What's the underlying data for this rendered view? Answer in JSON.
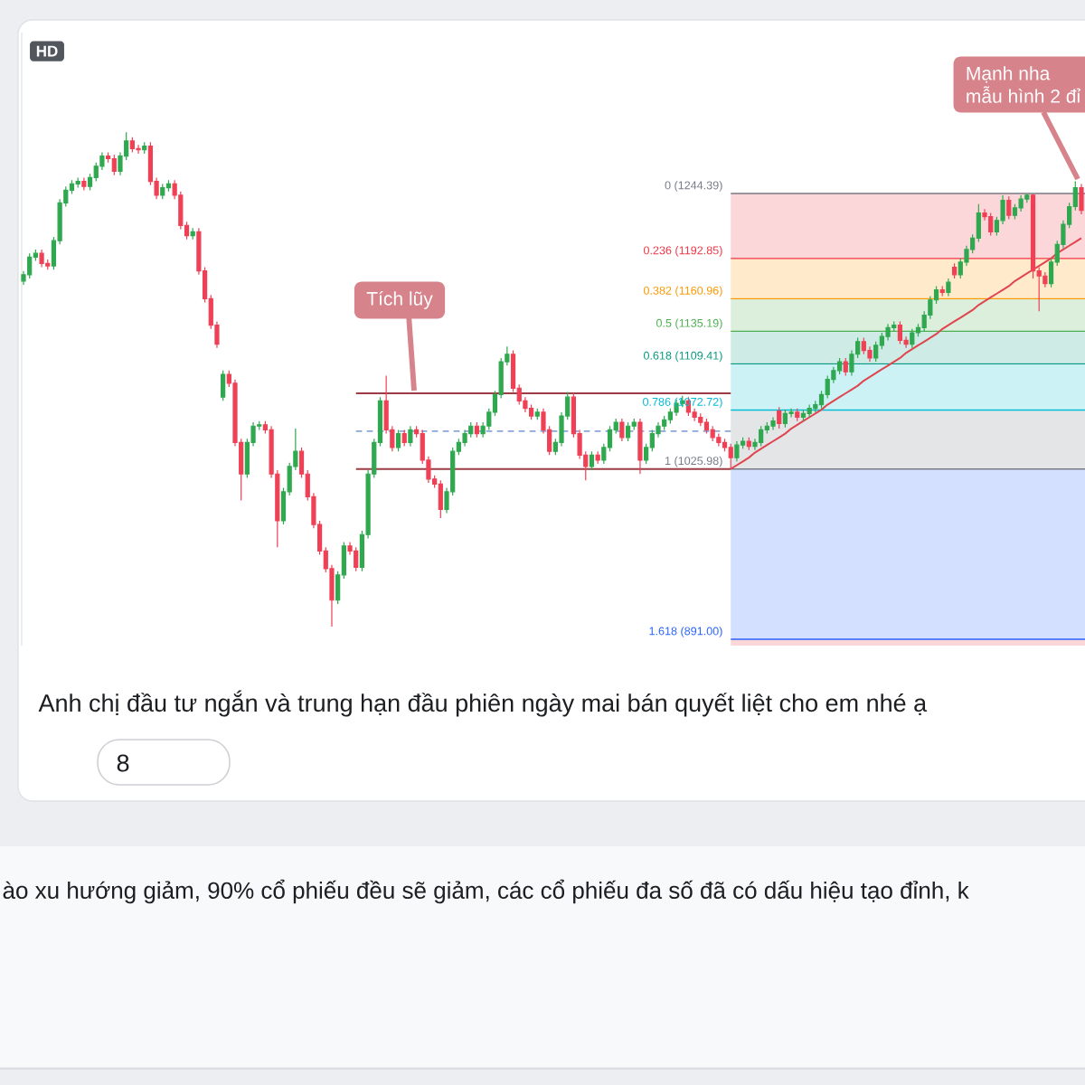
{
  "chart_data": {
    "type": "candlestick",
    "tick_labels": false,
    "categories": [
      null,
      null,
      null,
      null,
      null,
      null,
      null,
      null,
      null,
      null,
      null,
      null,
      null,
      null,
      null,
      null,
      null,
      null,
      null,
      null,
      null,
      null,
      null,
      null,
      null,
      null,
      null,
      null,
      null,
      null,
      null,
      null,
      null,
      null,
      null,
      null,
      null,
      null,
      null,
      null,
      null,
      null,
      null,
      null,
      null,
      null,
      null,
      null,
      null,
      null,
      null,
      null,
      null,
      null,
      null,
      null,
      null,
      null,
      null,
      null,
      null,
      null,
      null,
      null,
      null,
      null,
      null,
      null,
      null,
      null,
      null,
      null,
      null,
      null,
      null,
      null,
      null,
      null,
      null,
      null,
      null,
      null,
      null,
      null,
      null,
      null,
      null,
      null,
      null,
      null,
      null,
      null,
      null,
      null,
      null,
      null,
      null,
      null,
      null,
      null,
      null,
      null,
      null,
      null,
      null,
      null,
      null,
      null,
      null,
      null,
      null,
      null,
      null,
      null,
      null,
      null,
      null,
      null,
      null,
      null,
      null,
      null,
      null,
      null,
      null,
      null,
      null,
      null,
      null,
      null,
      null,
      null,
      null,
      null,
      null,
      null,
      null,
      null,
      null,
      null,
      null,
      null,
      null,
      null,
      null,
      null,
      null,
      null,
      null,
      null,
      null,
      null,
      null,
      null,
      null,
      null,
      null,
      null,
      null,
      null,
      null,
      null,
      null,
      null,
      null,
      null,
      null,
      null,
      null,
      null,
      null,
      null,
      null,
      null,
      null,
      null
    ],
    "ohlc": [
      [
        1175,
        1183,
        1172,
        1180
      ],
      [
        1180,
        1197,
        1177,
        1194
      ],
      [
        1194,
        1200,
        1191,
        1197
      ],
      [
        1197,
        1200,
        1186,
        1189
      ],
      [
        1189,
        1192,
        1184,
        1187
      ],
      [
        1187,
        1210,
        1184,
        1207
      ],
      [
        1207,
        1240,
        1204,
        1237
      ],
      [
        1237,
        1250,
        1234,
        1247
      ],
      [
        1247,
        1255,
        1244,
        1252
      ],
      [
        1252,
        1257,
        1249,
        1254
      ],
      [
        1254,
        1257,
        1247,
        1250
      ],
      [
        1250,
        1260,
        1247,
        1257
      ],
      [
        1257,
        1269,
        1254,
        1266
      ],
      [
        1266,
        1277,
        1263,
        1274
      ],
      [
        1274,
        1277,
        1269,
        1272
      ],
      [
        1272,
        1275,
        1259,
        1262
      ],
      [
        1262,
        1277,
        1259,
        1274
      ],
      [
        1274,
        1293,
        1271,
        1286
      ],
      [
        1286,
        1289,
        1277,
        1280
      ],
      [
        1280,
        1283,
        1276,
        1279
      ],
      [
        1279,
        1285,
        1276,
        1282
      ],
      [
        1282,
        1285,
        1251,
        1254
      ],
      [
        1254,
        1257,
        1240,
        1243
      ],
      [
        1243,
        1252,
        1240,
        1249
      ],
      [
        1249,
        1255,
        1246,
        1252
      ],
      [
        1252,
        1255,
        1240,
        1243
      ],
      [
        1243,
        1246,
        1216,
        1219
      ],
      [
        1219,
        1222,
        1208,
        1211
      ],
      [
        1211,
        1217,
        1208,
        1214
      ],
      [
        1214,
        1217,
        1180,
        1183
      ],
      [
        1183,
        1186,
        1158,
        1161
      ],
      [
        1161,
        1164,
        1137,
        1140
      ],
      [
        1140,
        1143,
        1122,
        1125
      ],
      [
        1083,
        1104,
        1080,
        1101
      ],
      [
        1101,
        1104,
        1091,
        1094
      ],
      [
        1094,
        1097,
        1044,
        1047
      ],
      [
        1047,
        1050,
        1001,
        1022
      ],
      [
        1022,
        1050,
        1019,
        1047
      ],
      [
        1047,
        1063,
        1044,
        1060
      ],
      [
        1060,
        1064,
        1057,
        1061
      ],
      [
        1061,
        1064,
        1054,
        1057
      ],
      [
        1057,
        1060,
        1019,
        1022
      ],
      [
        1022,
        1025,
        964,
        985
      ],
      [
        985,
        1011,
        982,
        1008
      ],
      [
        1008,
        1031,
        1005,
        1028
      ],
      [
        1028,
        1058,
        1025,
        1040
      ],
      [
        1040,
        1043,
        1019,
        1022
      ],
      [
        1022,
        1025,
        1001,
        1004
      ],
      [
        1004,
        1007,
        979,
        982
      ],
      [
        982,
        985,
        958,
        961
      ],
      [
        961,
        964,
        944,
        947
      ],
      [
        947,
        950,
        901,
        922
      ],
      [
        922,
        945,
        919,
        942
      ],
      [
        942,
        968,
        939,
        965
      ],
      [
        965,
        968,
        958,
        961
      ],
      [
        961,
        964,
        945,
        948
      ],
      [
        948,
        977,
        945,
        974
      ],
      [
        974,
        1025,
        971,
        1022
      ],
      [
        1022,
        1050,
        1019,
        1047
      ],
      [
        1047,
        1083,
        1044,
        1080
      ],
      [
        1080,
        1100,
        1054,
        1057
      ],
      [
        1057,
        1060,
        1040,
        1043
      ],
      [
        1043,
        1057,
        1040,
        1054
      ],
      [
        1054,
        1057,
        1044,
        1047
      ],
      [
        1047,
        1060,
        1044,
        1057
      ],
      [
        1057,
        1060,
        1051,
        1054
      ],
      [
        1054,
        1057,
        1030,
        1033
      ],
      [
        1033,
        1036,
        1015,
        1018
      ],
      [
        1018,
        1021,
        1011,
        1014
      ],
      [
        1014,
        1017,
        987,
        994
      ],
      [
        994,
        1011,
        991,
        1008
      ],
      [
        1008,
        1043,
        1005,
        1040
      ],
      [
        1040,
        1050,
        1037,
        1047
      ],
      [
        1047,
        1057,
        1044,
        1054
      ],
      [
        1054,
        1063,
        1051,
        1060
      ],
      [
        1060,
        1063,
        1051,
        1054
      ],
      [
        1054,
        1063,
        1051,
        1060
      ],
      [
        1060,
        1074,
        1057,
        1071
      ],
      [
        1071,
        1088,
        1068,
        1085
      ],
      [
        1085,
        1114,
        1082,
        1111
      ],
      [
        1111,
        1123,
        1108,
        1117
      ],
      [
        1117,
        1120,
        1087,
        1090
      ],
      [
        1090,
        1093,
        1077,
        1080
      ],
      [
        1080,
        1083,
        1071,
        1074
      ],
      [
        1074,
        1077,
        1065,
        1068
      ],
      [
        1068,
        1074,
        1065,
        1071
      ],
      [
        1071,
        1074,
        1054,
        1057
      ],
      [
        1057,
        1060,
        1037,
        1040
      ],
      [
        1040,
        1050,
        1037,
        1047
      ],
      [
        1047,
        1071,
        1044,
        1068
      ],
      [
        1068,
        1087,
        1065,
        1083
      ],
      [
        1083,
        1086,
        1051,
        1054
      ],
      [
        1054,
        1057,
        1034,
        1037
      ],
      [
        1037,
        1040,
        1017,
        1028
      ],
      [
        1028,
        1040,
        1025,
        1037
      ],
      [
        1037,
        1040,
        1030,
        1033
      ],
      [
        1033,
        1046,
        1030,
        1043
      ],
      [
        1043,
        1060,
        1040,
        1057
      ],
      [
        1057,
        1066,
        1054,
        1063
      ],
      [
        1063,
        1066,
        1048,
        1051
      ],
      [
        1051,
        1063,
        1048,
        1060
      ],
      [
        1060,
        1066,
        1057,
        1063
      ],
      [
        1063,
        1066,
        1022,
        1033
      ],
      [
        1033,
        1046,
        1030,
        1043
      ],
      [
        1043,
        1057,
        1040,
        1054
      ],
      [
        1054,
        1063,
        1051,
        1060
      ],
      [
        1060,
        1068,
        1057,
        1065
      ],
      [
        1065,
        1074,
        1062,
        1071
      ],
      [
        1071,
        1081,
        1068,
        1078
      ],
      [
        1078,
        1084,
        1075,
        1080
      ],
      [
        1080,
        1083,
        1068,
        1071
      ],
      [
        1071,
        1074,
        1064,
        1067
      ],
      [
        1067,
        1070,
        1060,
        1063
      ],
      [
        1063,
        1066,
        1054,
        1057
      ],
      [
        1057,
        1060,
        1048,
        1051
      ],
      [
        1051,
        1054,
        1044,
        1047
      ],
      [
        1047,
        1050,
        1040,
        1043
      ],
      [
        1043,
        1046,
        1026,
        1035
      ],
      [
        1035,
        1048,
        1032,
        1045
      ],
      [
        1045,
        1051,
        1042,
        1048
      ],
      [
        1048,
        1051,
        1041,
        1044
      ],
      [
        1044,
        1050,
        1041,
        1047
      ],
      [
        1047,
        1060,
        1044,
        1057
      ],
      [
        1057,
        1063,
        1054,
        1060
      ],
      [
        1060,
        1067,
        1057,
        1064
      ],
      [
        1072,
        1075,
        1058,
        1062
      ],
      [
        1062,
        1073,
        1059,
        1070
      ],
      [
        1070,
        1074,
        1067,
        1071
      ],
      [
        1071,
        1074,
        1064,
        1067
      ],
      [
        1067,
        1073,
        1064,
        1070
      ],
      [
        1070,
        1077,
        1067,
        1074
      ],
      [
        1074,
        1080,
        1071,
        1077
      ],
      [
        1077,
        1088,
        1074,
        1085
      ],
      [
        1085,
        1100,
        1082,
        1097
      ],
      [
        1097,
        1107,
        1094,
        1104
      ],
      [
        1104,
        1114,
        1101,
        1111
      ],
      [
        1111,
        1114,
        1100,
        1103
      ],
      [
        1103,
        1120,
        1100,
        1117
      ],
      [
        1117,
        1130,
        1114,
        1127
      ],
      [
        1127,
        1130,
        1117,
        1120
      ],
      [
        1120,
        1123,
        1111,
        1114
      ],
      [
        1114,
        1127,
        1111,
        1124
      ],
      [
        1124,
        1134,
        1121,
        1131
      ],
      [
        1131,
        1141,
        1128,
        1138
      ],
      [
        1138,
        1143,
        1135,
        1140
      ],
      [
        1140,
        1143,
        1125,
        1128
      ],
      [
        1128,
        1131,
        1122,
        1125
      ],
      [
        1125,
        1137,
        1122,
        1134
      ],
      [
        1134,
        1141,
        1131,
        1138
      ],
      [
        1138,
        1151,
        1135,
        1148
      ],
      [
        1148,
        1163,
        1145,
        1160
      ],
      [
        1160,
        1171,
        1157,
        1168
      ],
      [
        1168,
        1171,
        1163,
        1166
      ],
      [
        1166,
        1177,
        1163,
        1174
      ],
      [
        1186,
        1189,
        1177,
        1180
      ],
      [
        1180,
        1193,
        1177,
        1190
      ],
      [
        1190,
        1203,
        1187,
        1200
      ],
      [
        1200,
        1212,
        1197,
        1209
      ],
      [
        1209,
        1236,
        1206,
        1229
      ],
      [
        1229,
        1232,
        1223,
        1226
      ],
      [
        1226,
        1229,
        1211,
        1214
      ],
      [
        1214,
        1226,
        1211,
        1223
      ],
      [
        1223,
        1243,
        1220,
        1239
      ],
      [
        1239,
        1242,
        1224,
        1227
      ],
      [
        1227,
        1236,
        1224,
        1233
      ],
      [
        1233,
        1243,
        1230,
        1240
      ],
      [
        1240,
        1244,
        1237,
        1243
      ],
      [
        1243,
        1244,
        1177,
        1183
      ],
      [
        1183,
        1186,
        1151,
        1179
      ],
      [
        1179,
        1182,
        1170,
        1173
      ],
      [
        1173,
        1193,
        1170,
        1190
      ],
      [
        1190,
        1207,
        1187,
        1204
      ],
      [
        1204,
        1223,
        1201,
        1220
      ],
      [
        1220,
        1237,
        1217,
        1234
      ],
      [
        1234,
        1254,
        1231,
        1249
      ],
      [
        1249,
        1252,
        1228,
        1231
      ]
    ],
    "colors": [
      "#2fa84f",
      "#2fa84f",
      "#2fa84f",
      "#ef4056",
      "#ef4056",
      "#2fa84f",
      "#2fa84f",
      "#2fa84f",
      "#2fa84f",
      "#2fa84f",
      "#ef4056",
      "#2fa84f",
      "#2fa84f",
      "#2fa84f",
      "#ef4056",
      "#ef4056",
      "#2fa84f",
      "#2fa84f",
      "#ef4056",
      "#ef4056",
      "#2fa84f",
      "#ef4056",
      "#ef4056",
      "#2fa84f",
      "#2fa84f",
      "#ef4056",
      "#ef4056",
      "#ef4056",
      "#2fa84f",
      "#ef4056",
      "#ef4056",
      "#ef4056",
      "#ef4056",
      "#2fa84f",
      "#ef4056",
      "#ef4056",
      "#ef4056",
      "#2fa84f",
      "#2fa84f",
      "#2fa84f",
      "#ef4056",
      "#ef4056",
      "#ef4056",
      "#2fa84f",
      "#2fa84f",
      "#2fa84f",
      "#ef4056",
      "#ef4056",
      "#ef4056",
      "#ef4056",
      "#ef4056",
      "#ef4056",
      "#2fa84f",
      "#2fa84f",
      "#ef4056",
      "#ef4056",
      "#2fa84f",
      "#2fa84f",
      "#2fa84f",
      "#2fa84f",
      "#ef4056",
      "#ef4056",
      "#2fa84f",
      "#ef4056",
      "#2fa84f",
      "#ef4056",
      "#ef4056",
      "#ef4056",
      "#ef4056",
      "#ef4056",
      "#2fa84f",
      "#2fa84f",
      "#2fa84f",
      "#2fa84f",
      "#2fa84f",
      "#ef4056",
      "#2fa84f",
      "#2fa84f",
      "#2fa84f",
      "#2fa84f",
      "#2fa84f",
      "#ef4056",
      "#ef4056",
      "#ef4056",
      "#ef4056",
      "#2fa84f",
      "#ef4056",
      "#ef4056",
      "#2fa84f",
      "#2fa84f",
      "#2fa84f",
      "#ef4056",
      "#ef4056",
      "#ef4056",
      "#2fa84f",
      "#ef4056",
      "#2fa84f",
      "#2fa84f",
      "#2fa84f",
      "#ef4056",
      "#2fa84f",
      "#2fa84f",
      "#ef4056",
      "#2fa84f",
      "#2fa84f",
      "#2fa84f",
      "#2fa84f",
      "#2fa84f",
      "#2fa84f",
      "#2fa84f",
      "#ef4056",
      "#ef4056",
      "#ef4056",
      "#ef4056",
      "#ef4056",
      "#ef4056",
      "#ef4056",
      "#ef4056",
      "#2fa84f",
      "#2fa84f",
      "#ef4056",
      "#2fa84f",
      "#2fa84f",
      "#2fa84f",
      "#2fa84f",
      "#ef4056",
      "#2fa84f",
      "#2fa84f",
      "#ef4056",
      "#2fa84f",
      "#2fa84f",
      "#2fa84f",
      "#2fa84f",
      "#2fa84f",
      "#2fa84f",
      "#2fa84f",
      "#ef4056",
      "#2fa84f",
      "#2fa84f",
      "#ef4056",
      "#ef4056",
      "#2fa84f",
      "#2fa84f",
      "#2fa84f",
      "#2fa84f",
      "#ef4056",
      "#ef4056",
      "#2fa84f",
      "#2fa84f",
      "#2fa84f",
      "#2fa84f",
      "#2fa84f",
      "#ef4056",
      "#2fa84f",
      "#ef4056",
      "#2fa84f",
      "#2fa84f",
      "#2fa84f",
      "#2fa84f",
      "#ef4056",
      "#ef4056",
      "#2fa84f",
      "#2fa84f",
      "#ef4056",
      "#2fa84f",
      "#2fa84f",
      "#2fa84f",
      "#ef4056",
      "#ef4056",
      "#ef4056",
      "#2fa84f",
      "#2fa84f",
      "#2fa84f",
      "#2fa84f",
      "#2fa84f",
      "#ef4056"
    ],
    "ylim": [
      886,
      1372
    ],
    "series": [
      {
        "type": "line",
        "color": "#9c3d46",
        "values": [
          null,
          null,
          null,
          null,
          null,
          null,
          null,
          null,
          null,
          null,
          null,
          null,
          null,
          null,
          null,
          null,
          null,
          null,
          null,
          null,
          null,
          null,
          null,
          null,
          null,
          null,
          null,
          null,
          null,
          null,
          null,
          null,
          null,
          null,
          null,
          null,
          null,
          null,
          null,
          null,
          null,
          null,
          null,
          null,
          null,
          null,
          null,
          null,
          null,
          null,
          null,
          null,
          null,
          null,
          null,
          1086,
          1086,
          1086,
          1086,
          1086,
          1086,
          1086,
          1086,
          1086,
          1086,
          1086,
          1086,
          1086,
          1086,
          1086,
          1086,
          1086,
          1086,
          1086,
          1086,
          1086,
          1086,
          1086,
          1086,
          1086,
          1086,
          1086,
          1086,
          1086,
          1086,
          1086,
          1086,
          1086,
          1086,
          1086,
          1086,
          1086,
          1086,
          1086,
          1086,
          1086,
          1086,
          1086,
          1086,
          1086,
          1086,
          1086,
          1086,
          1086,
          1086,
          1086,
          1086,
          1086,
          1086,
          1086,
          1086,
          1086,
          1086,
          1086,
          1086,
          1086,
          1086,
          1086,
          null,
          null,
          null,
          null,
          null,
          null,
          null,
          null,
          null,
          null,
          null,
          null,
          null,
          null,
          null,
          null,
          null,
          null,
          null,
          null,
          null,
          null,
          null,
          null,
          null,
          null,
          null,
          null,
          null,
          null,
          null,
          null,
          null,
          null,
          null,
          null,
          null,
          null,
          null,
          null,
          null,
          null,
          null,
          null,
          null,
          null,
          null,
          null,
          null,
          null,
          null,
          null,
          null,
          null,
          null,
          null,
          null,
          null
        ]
      },
      {
        "type": "line",
        "color": "#8aa6d8",
        "line_style": "dashed",
        "values": [
          null,
          null,
          null,
          null,
          null,
          null,
          null,
          null,
          null,
          null,
          null,
          null,
          null,
          null,
          null,
          null,
          null,
          null,
          null,
          null,
          null,
          null,
          null,
          null,
          null,
          null,
          null,
          null,
          null,
          null,
          null,
          null,
          null,
          null,
          null,
          null,
          null,
          null,
          null,
          null,
          null,
          null,
          null,
          null,
          null,
          null,
          null,
          null,
          null,
          null,
          null,
          null,
          null,
          null,
          null,
          1056,
          1056,
          1056,
          1056,
          1056,
          1056,
          1056,
          1056,
          1056,
          1056,
          1056,
          1056,
          1056,
          1056,
          1056,
          1056,
          1056,
          1056,
          1056,
          1056,
          1056,
          1056,
          1056,
          1056,
          1056,
          1056,
          1056,
          1056,
          1056,
          1056,
          1056,
          1056,
          1056,
          1056,
          1056,
          1056,
          1056,
          1056,
          1056,
          1056,
          1056,
          1056,
          1056,
          1056,
          1056,
          1056,
          1056,
          1056,
          1056,
          1056,
          1056,
          1056,
          1056,
          1056,
          1056,
          1056,
          1056,
          1056,
          1056,
          1056,
          1056,
          1056,
          1056,
          null,
          null,
          null,
          null,
          null,
          null,
          null,
          null,
          null,
          null,
          null,
          null,
          null,
          null,
          null,
          null,
          null,
          null,
          null,
          null,
          null,
          null,
          null,
          null,
          null,
          null,
          null,
          null,
          null,
          null,
          null,
          null,
          null,
          null,
          null,
          null,
          null,
          null,
          null,
          null,
          null,
          null,
          null,
          null,
          null,
          null,
          null,
          null,
          null,
          null,
          null,
          null,
          null,
          null,
          null,
          null,
          null,
          null
        ]
      },
      {
        "type": "line",
        "color": "#9c3d46",
        "values": [
          null,
          null,
          null,
          null,
          null,
          null,
          null,
          null,
          null,
          null,
          null,
          null,
          null,
          null,
          null,
          null,
          null,
          null,
          null,
          null,
          null,
          null,
          null,
          null,
          null,
          null,
          null,
          null,
          null,
          null,
          null,
          null,
          null,
          null,
          null,
          null,
          null,
          null,
          null,
          null,
          null,
          null,
          null,
          null,
          null,
          null,
          null,
          null,
          null,
          null,
          null,
          null,
          null,
          null,
          null,
          1026,
          1026,
          1026,
          1026,
          1026,
          1026,
          1026,
          1026,
          1026,
          1026,
          1026,
          1026,
          1026,
          1026,
          1026,
          1026,
          1026,
          1026,
          1026,
          1026,
          1026,
          1026,
          1026,
          1026,
          1026,
          1026,
          1026,
          1026,
          1026,
          1026,
          1026,
          1026,
          1026,
          1026,
          1026,
          1026,
          1026,
          1026,
          1026,
          1026,
          1026,
          1026,
          1026,
          1026,
          1026,
          1026,
          1026,
          1026,
          1026,
          1026,
          1026,
          1026,
          1026,
          1026,
          1026,
          1026,
          1026,
          1026,
          1026,
          1026,
          1026,
          1026,
          1026,
          null,
          null,
          null,
          null,
          null,
          null,
          null,
          null,
          null,
          null,
          null,
          null,
          null,
          null,
          null,
          null,
          null,
          null,
          null,
          null,
          null,
          null,
          null,
          null,
          null,
          null,
          null,
          null,
          null,
          null,
          null,
          null,
          null,
          null,
          null,
          null,
          null,
          null,
          null,
          null,
          null,
          null,
          null,
          null,
          null,
          null,
          null,
          null,
          null,
          null,
          null,
          null,
          null,
          null,
          null,
          null,
          null,
          null
        ]
      },
      {
        "type": "line",
        "color": "#e0454f",
        "values": [
          null,
          null,
          null,
          null,
          null,
          null,
          null,
          null,
          null,
          null,
          null,
          null,
          null,
          null,
          null,
          null,
          null,
          null,
          null,
          null,
          null,
          null,
          null,
          null,
          null,
          null,
          null,
          null,
          null,
          null,
          null,
          null,
          null,
          null,
          null,
          null,
          null,
          null,
          null,
          null,
          null,
          null,
          null,
          null,
          null,
          null,
          null,
          null,
          null,
          null,
          null,
          null,
          null,
          null,
          null,
          null,
          null,
          null,
          null,
          null,
          null,
          null,
          null,
          null,
          null,
          null,
          null,
          null,
          null,
          null,
          null,
          null,
          null,
          null,
          null,
          null,
          null,
          null,
          null,
          null,
          null,
          null,
          null,
          null,
          null,
          null,
          null,
          null,
          null,
          null,
          null,
          null,
          null,
          null,
          null,
          null,
          null,
          null,
          null,
          null,
          null,
          null,
          null,
          null,
          null,
          null,
          null,
          null,
          null,
          null,
          null,
          null,
          null,
          null,
          null,
          null,
          null,
          1026,
          1029,
          1032,
          1035,
          1039,
          1042,
          1045,
          1048,
          1051,
          1054,
          1058,
          1061,
          1064,
          1067,
          1070,
          1073,
          1077,
          1080,
          1083,
          1086,
          1089,
          1092,
          1096,
          1099,
          1102,
          1105,
          1108,
          1111,
          1114,
          1118,
          1121,
          1124,
          1127,
          1130,
          1133,
          1137,
          1140,
          1143,
          1146,
          1149,
          1152,
          1156,
          1159,
          1162,
          1165,
          1168,
          1171,
          1175,
          1178,
          1181,
          1184,
          1187,
          1190,
          1193,
          1197,
          1200,
          1203,
          1206,
          1209
        ]
      }
    ],
    "bands": [
      {
        "axis": "y",
        "from": 1244.39,
        "to": 1192.85,
        "color": "#fcd7da"
      },
      {
        "axis": "y",
        "from": 1192.85,
        "to": 1160.96,
        "color": "#ffebcc"
      },
      {
        "axis": "y",
        "from": 1160.96,
        "to": 1135.19,
        "color": "#dbefdc"
      },
      {
        "axis": "y",
        "from": 1135.19,
        "to": 1109.41,
        "color": "#ceebe6"
      },
      {
        "axis": "y",
        "from": 1109.41,
        "to": 1072.72,
        "color": "#ccf2f6"
      },
      {
        "axis": "y",
        "from": 1072.72,
        "to": 1025.98,
        "color": "#e4e5e7"
      },
      {
        "axis": "y",
        "from": 1025.98,
        "to": 891.0,
        "color": "#d4e0ff"
      },
      {
        "axis": "y",
        "from": 891.0,
        "to": 886,
        "color": "#fcd7da"
      }
    ],
    "ref_lines": [
      {
        "axis": "y",
        "value": 1244.39,
        "label": "0 (1244.39)",
        "color": "#787b86"
      },
      {
        "axis": "y",
        "value": 1192.85,
        "label": "0.236 (1192.85)",
        "color": "#f23645"
      },
      {
        "axis": "y",
        "value": 1160.96,
        "label": "0.382 (1160.96)",
        "color": "#ff9800"
      },
      {
        "axis": "y",
        "value": 1135.19,
        "label": "0.5 (1135.19)",
        "color": "#4caf50"
      },
      {
        "axis": "y",
        "value": 1109.41,
        "label": "0.618 (1109.41)",
        "color": "#089981"
      },
      {
        "axis": "y",
        "value": 1072.72,
        "label": "0.786 (1072.72)",
        "color": "#00bcd4"
      },
      {
        "axis": "y",
        "value": 1025.98,
        "label": "1 (1025.98)",
        "color": "#787b86"
      },
      {
        "axis": "y",
        "value": 891.0,
        "label": "1.618 (891.00)",
        "color": "#2962ff"
      }
    ],
    "annotations": [
      "HD",
      "Tích lũy",
      "Mạnh nha",
      "mẫu hình 2 đỉ",
      "Anh chị đầu tư ngắn và trung hạn đầu phiên ngày mai bán quyết liệt cho em nhé ạ",
      "8",
      "ào xu hướng giảm, 90% cổ phiếu đều sẽ giảm, các cổ phiếu đa số đã có dấu hiệu tạo đỉnh, k"
    ]
  }
}
